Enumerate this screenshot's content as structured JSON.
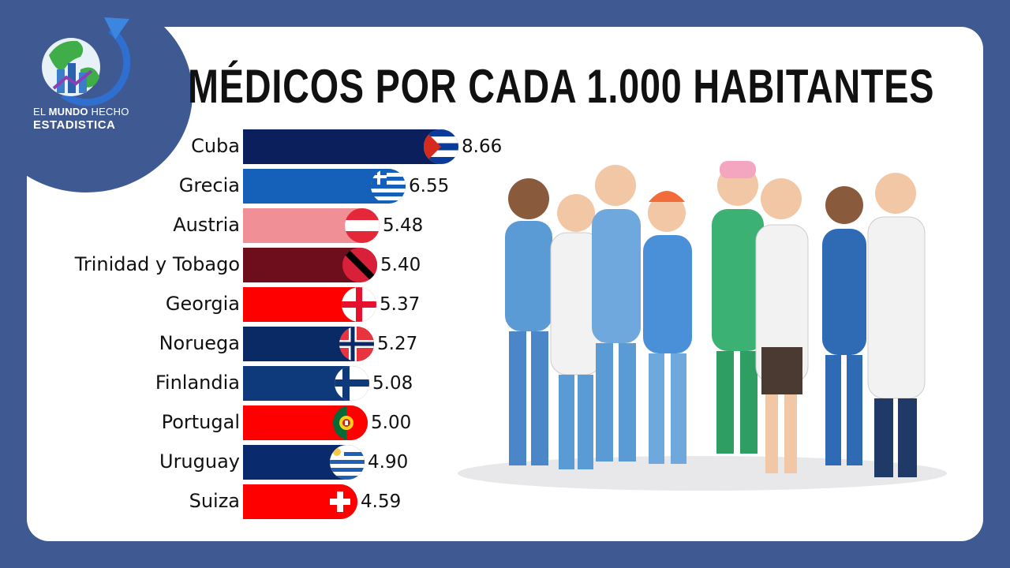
{
  "brand": {
    "line1_light_a": "EL ",
    "line1_bold": "MUNDO",
    "line1_light_b": " HECHO",
    "line2": "ESTADISTICA"
  },
  "title": "MÉDICOS POR CADA 1.000 HABITANTES",
  "colors": {
    "frame": "#3f5a93",
    "background": "#ffffff"
  },
  "chart_data": {
    "type": "bar",
    "orientation": "horizontal",
    "title": "MÉDICOS POR CADA 1.000 HABITANTES",
    "xlabel": "",
    "ylabel": "",
    "categories": [
      "Cuba",
      "Grecia",
      "Austria",
      "Trinidad y Tobago",
      "Georgia",
      "Noruega",
      "Finlandia",
      "Portugal",
      "Uruguay",
      "Suiza"
    ],
    "values": [
      8.66,
      6.55,
      5.48,
      5.4,
      5.37,
      5.27,
      5.08,
      5.0,
      4.9,
      4.59
    ],
    "value_labels": [
      "8.66",
      "6.55",
      "5.48",
      "5.40",
      "5.37",
      "5.27",
      "5.08",
      "5.00",
      "4.90",
      "4.59"
    ],
    "bar_colors": [
      "#0a1f5c",
      "#1560b8",
      "#f08f96",
      "#6e0e1c",
      "#ff0000",
      "#0a2a66",
      "#0e3a7c",
      "#ff0000",
      "#0a2a6e",
      "#ff0000"
    ],
    "flags": [
      "cuba-flag",
      "greece-flag",
      "austria-flag",
      "trinidad-tobago-flag",
      "georgia-flag",
      "norway-flag",
      "finland-flag",
      "portugal-flag",
      "uruguay-flag",
      "switzerland-flag"
    ],
    "grid": false,
    "legend": "none"
  },
  "illustration": "group-of-medical-staff"
}
